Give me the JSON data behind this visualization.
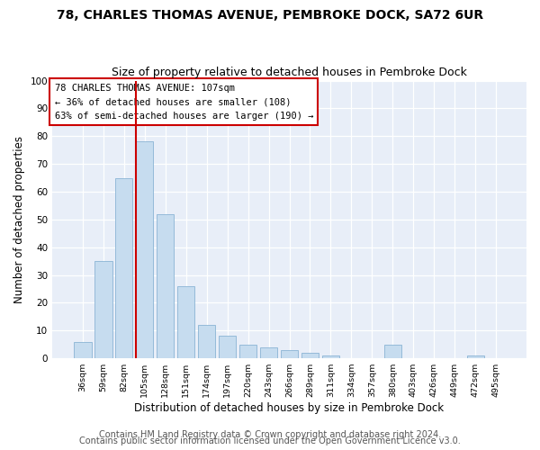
{
  "title": "78, CHARLES THOMAS AVENUE, PEMBROKE DOCK, SA72 6UR",
  "subtitle": "Size of property relative to detached houses in Pembroke Dock",
  "xlabel": "Distribution of detached houses by size in Pembroke Dock",
  "ylabel": "Number of detached properties",
  "bar_labels": [
    "36sqm",
    "59sqm",
    "82sqm",
    "105sqm",
    "128sqm",
    "151sqm",
    "174sqm",
    "197sqm",
    "220sqm",
    "243sqm",
    "266sqm",
    "289sqm",
    "311sqm",
    "334sqm",
    "357sqm",
    "380sqm",
    "403sqm",
    "426sqm",
    "449sqm",
    "472sqm",
    "495sqm"
  ],
  "bar_values": [
    6,
    35,
    65,
    78,
    52,
    26,
    12,
    8,
    5,
    4,
    3,
    2,
    1,
    0,
    0,
    5,
    0,
    0,
    0,
    1,
    0
  ],
  "bar_color": "#c6dcef",
  "bar_edge_color": "#8ab4d4",
  "vline_color": "#cc0000",
  "ylim": [
    0,
    100
  ],
  "annotation_text": "78 CHARLES THOMAS AVENUE: 107sqm\n← 36% of detached houses are smaller (108)\n63% of semi-detached houses are larger (190) →",
  "annotation_box_edgecolor": "#cc0000",
  "footer_line1": "Contains HM Land Registry data © Crown copyright and database right 2024.",
  "footer_line2": "Contains public sector information licensed under the Open Government Licence v3.0.",
  "background_color": "#ffffff",
  "plot_bg_color": "#e8eef8",
  "title_fontsize": 10,
  "subtitle_fontsize": 9,
  "footer_fontsize": 7,
  "ylabel_fontsize": 8.5,
  "xlabel_fontsize": 8.5,
  "annot_fontsize": 7.5,
  "ytick_fontsize": 7.5,
  "xtick_fontsize": 6.8
}
